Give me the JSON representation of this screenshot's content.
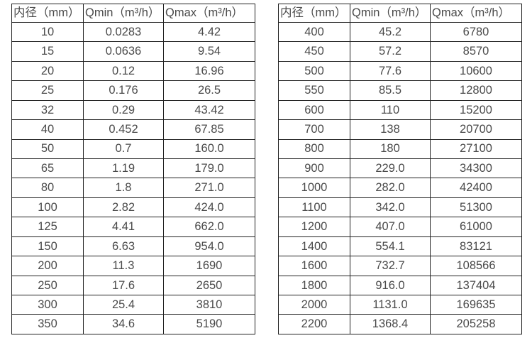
{
  "colors": {
    "background": "#ffffff",
    "border": "#222222",
    "text": "#4a4a4a"
  },
  "tables": [
    {
      "name": "flow-range-table-small-diameters",
      "headers": [
        "内径（mm）",
        "Qmin（m³/h）",
        "Qmax（m³/h）"
      ],
      "rows": [
        [
          "10",
          "0.0283",
          "4.42"
        ],
        [
          "15",
          "0.0636",
          "9.54"
        ],
        [
          "20",
          "0.12",
          "16.96"
        ],
        [
          "25",
          "0.176",
          "26.5"
        ],
        [
          "32",
          "0.29",
          "43.42"
        ],
        [
          "40",
          "0.452",
          "67.85"
        ],
        [
          "50",
          "0.7",
          "160.0"
        ],
        [
          "65",
          "1.19",
          "179.0"
        ],
        [
          "80",
          "1.8",
          "271.0"
        ],
        [
          "100",
          "2.82",
          "424.0"
        ],
        [
          "125",
          "4.41",
          "662.0"
        ],
        [
          "150",
          "6.63",
          "954.0"
        ],
        [
          "200",
          "11.3",
          "1690"
        ],
        [
          "250",
          "17.6",
          "2650"
        ],
        [
          "300",
          "25.4",
          "3810"
        ],
        [
          "350",
          "34.6",
          "5190"
        ]
      ]
    },
    {
      "name": "flow-range-table-large-diameters",
      "headers": [
        "内径（mm）",
        "Qmin（m³/h）",
        "Qmax（m³/h）"
      ],
      "rows": [
        [
          "400",
          "45.2",
          "6780"
        ],
        [
          "450",
          "57.2",
          "8570"
        ],
        [
          "500",
          "77.6",
          "10600"
        ],
        [
          "550",
          "85.5",
          "12800"
        ],
        [
          "600",
          "110",
          "15200"
        ],
        [
          "700",
          "138",
          "20700"
        ],
        [
          "800",
          "180",
          "27100"
        ],
        [
          "900",
          "229.0",
          "34300"
        ],
        [
          "1000",
          "282.0",
          "42400"
        ],
        [
          "1100",
          "342.0",
          "51300"
        ],
        [
          "1200",
          "407.0",
          "61000"
        ],
        [
          "1400",
          "554.1",
          "83121"
        ],
        [
          "1600",
          "732.7",
          "108566"
        ],
        [
          "1800",
          "916.0",
          "137404"
        ],
        [
          "2000",
          "1131.0",
          "169635"
        ],
        [
          "2200",
          "1368.4",
          "205258"
        ]
      ]
    }
  ]
}
